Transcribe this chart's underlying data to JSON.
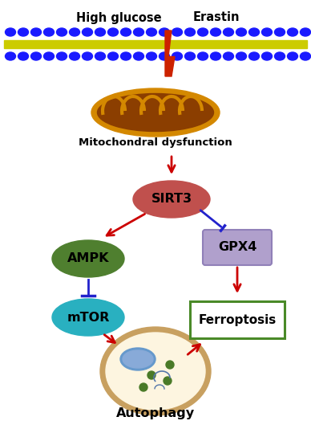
{
  "bg_color": "#ffffff",
  "mem_yellow": "#cccc00",
  "mem_blue": "#1a1aff",
  "mito_outer": "#c87800",
  "mito_inner": "#7a3300",
  "mito_crista": "#c87800",
  "sirt3_color": "#c0504d",
  "ampk_color": "#4f7f2f",
  "mtor_color": "#29b0c0",
  "gpx4_fill": "#b0a0cc",
  "gpx4_border": "#9080b8",
  "ferroptosis_border": "#4a8a28",
  "auto_outer_fill": "#f5deb3",
  "auto_outer_edge": "#c8a060",
  "auto_inner_fill": "#fdf5e0",
  "arrow_red": "#cc0000",
  "arrow_blue": "#2222cc",
  "bolt_color": "#cc2200",
  "nucleus_fill": "#6699cc",
  "nucleus_edge": "#4477aa",
  "dot_color": "#4a7a28",
  "labels": {
    "high_glucose": "High glucose",
    "erastin": "Erastin",
    "mito_dys": "Mitochondral dysfunction",
    "sirt3": "SIRT3",
    "ampk": "AMPK",
    "mtor": "mTOR",
    "gpx4": "GPX4",
    "ferroptosis": "Ferroptosis",
    "autophagy": "Autophagy"
  },
  "figsize": [
    3.88,
    5.29
  ],
  "dpi": 100,
  "xlim": [
    0,
    388
  ],
  "ylim": [
    0,
    529
  ]
}
